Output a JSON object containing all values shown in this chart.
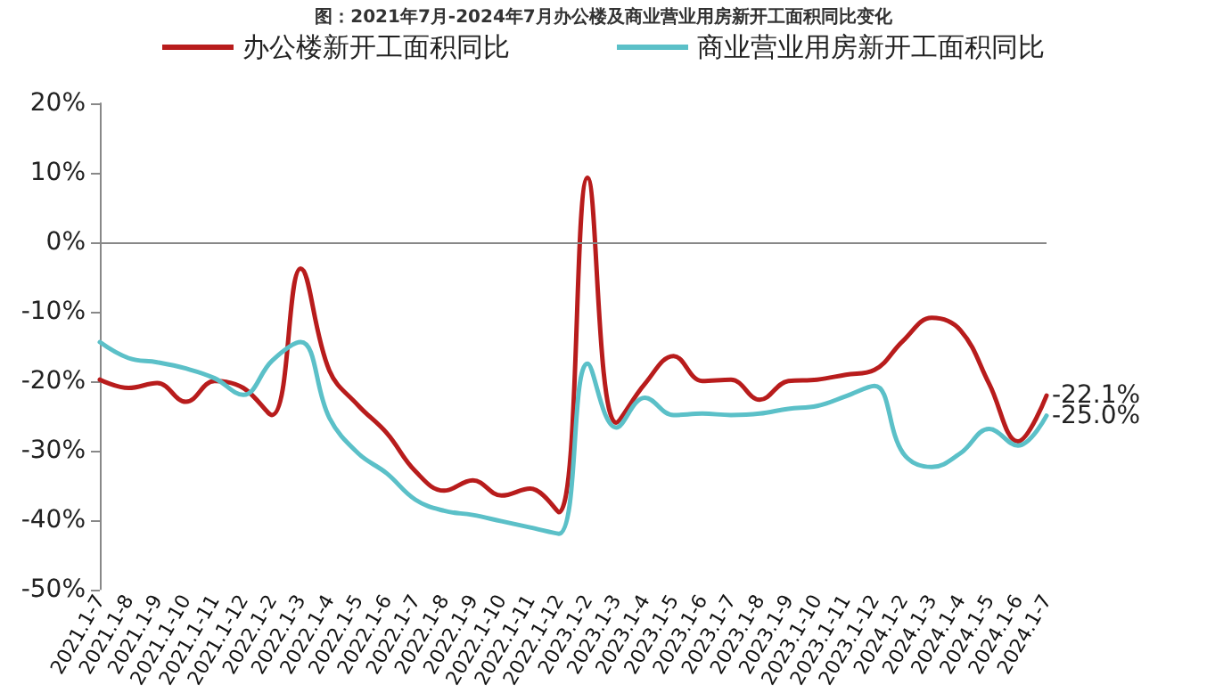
{
  "chart_data": {
    "type": "line",
    "title": "图：2021年7月-2024年7月办公楼及商业营业用房新开工面积同比变化",
    "categories": [
      "2021.1-7",
      "2021.1-8",
      "2021.1-9",
      "2021.1-10",
      "2021.1-11",
      "2021.1-12",
      "2022.1-2",
      "2022.1-3",
      "2022.1-4",
      "2022.1-5",
      "2022.1-6",
      "2022.1-7",
      "2022.1-8",
      "2022.1-9",
      "2022.1-10",
      "2022.1-11",
      "2022.1-12",
      "2023.1-2",
      "2023.1-3",
      "2023.1-4",
      "2023.1-5",
      "2023.1-6",
      "2023.1-7",
      "2023.1-8",
      "2023.1-9",
      "2023.1-10",
      "2023.1-11",
      "2023.1-12",
      "2024.1-2",
      "2024.1-3",
      "2024.1-4",
      "2024.1-5",
      "2024.1-6",
      "2024.1-7"
    ],
    "series": [
      {
        "name": "办公楼新开工面积同比",
        "color": "#b81c1c",
        "values": [
          -19.8,
          -21,
          -20.3,
          -23,
          -20,
          -21,
          -24.9,
          -3.8,
          -18.5,
          -23.5,
          -27.5,
          -33,
          -35.8,
          -34.3,
          -36.5,
          -35.5,
          -38.9,
          9.3,
          -26,
          -20.4,
          -16.4,
          -20,
          -19.8,
          -22.7,
          -20,
          -19.8,
          -19.1,
          -18.4,
          -14.2,
          -10.9,
          -12.7,
          -20.4,
          -28.7,
          -22.1
        ],
        "value_labels": [
          null,
          null,
          null,
          null,
          null,
          null,
          null,
          null,
          null,
          null,
          null,
          null,
          null,
          null,
          null,
          null,
          null,
          null,
          null,
          null,
          null,
          null,
          null,
          null,
          null,
          null,
          null,
          null,
          null,
          null,
          null,
          null,
          null,
          "-22.1%"
        ]
      },
      {
        "name": "商业营业用房新开工面积同比",
        "color": "#5bc0c8",
        "values": [
          -14.4,
          -16.7,
          -17.3,
          -18.2,
          -19.6,
          -22,
          -17.1,
          -14.4,
          -25.3,
          -30.4,
          -33.3,
          -37.1,
          -38.7,
          -39.3,
          -40.2,
          -41.1,
          -42,
          -17.5,
          -26.7,
          -22.4,
          -24.9,
          -24.7,
          -24.9,
          -24.7,
          -24,
          -23.6,
          -22.2,
          -20.7,
          -30.4,
          -32.4,
          -30.4,
          -26.9,
          -29.3,
          -25.0
        ],
        "value_labels": [
          null,
          null,
          null,
          null,
          null,
          null,
          null,
          null,
          null,
          null,
          null,
          null,
          null,
          null,
          null,
          null,
          null,
          null,
          null,
          null,
          null,
          null,
          null,
          null,
          null,
          null,
          null,
          null,
          null,
          null,
          null,
          null,
          null,
          "-25.0%"
        ]
      }
    ],
    "ylim": [
      -50,
      20
    ],
    "yticks": [
      {
        "value": -50,
        "label": "-50%"
      },
      {
        "value": -40,
        "label": "-40%"
      },
      {
        "value": -30,
        "label": "-30%"
      },
      {
        "value": -20,
        "label": "-20%"
      },
      {
        "value": -10,
        "label": "-10%"
      },
      {
        "value": 0,
        "label": "0%"
      },
      {
        "value": 10,
        "label": "10%"
      },
      {
        "value": 20,
        "label": "20%"
      }
    ],
    "ref_lines": [
      {
        "axis": "y",
        "value": 0,
        "color": "#888888"
      }
    ],
    "legend": "top",
    "grid": false,
    "marker": "none",
    "line_style": "solid"
  }
}
